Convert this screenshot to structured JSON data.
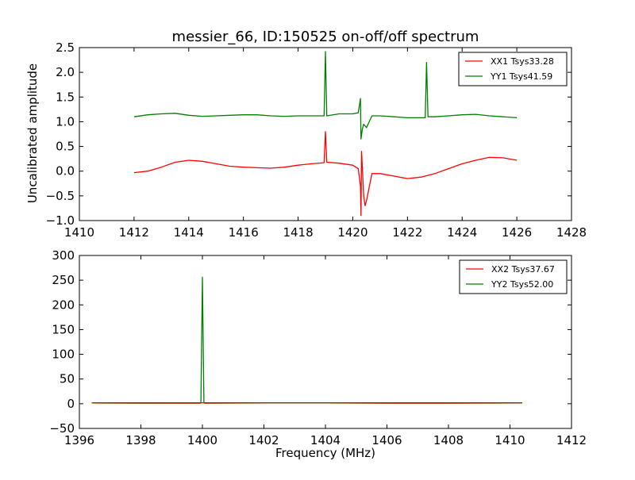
{
  "chart_data": [
    {
      "type": "line",
      "title": "messier_66, ID:150525 on-off/off spectrum",
      "xlabel": "",
      "ylabel": "Uncalibrated amplitude",
      "xlim": [
        1410,
        1428
      ],
      "ylim": [
        -1.0,
        2.5
      ],
      "xticks": [
        1410,
        1412,
        1414,
        1416,
        1418,
        1420,
        1422,
        1424,
        1426,
        1428
      ],
      "yticks": [
        -1.0,
        -0.5,
        0.0,
        0.5,
        1.0,
        1.5,
        2.0,
        2.5
      ],
      "xtick_labels": [
        "1410",
        "1412",
        "1414",
        "1416",
        "1418",
        "1420",
        "1422",
        "1424",
        "1426",
        "1428"
      ],
      "ytick_labels": [
        "−1.0",
        "−0.5",
        "0.0",
        "0.5",
        "1.0",
        "1.5",
        "2.0",
        "2.5"
      ],
      "legend": "top-right",
      "series": [
        {
          "name": "XX1 Tsys33.28",
          "color": "#ff0000",
          "x": [
            1412.0,
            1412.5,
            1413.0,
            1413.5,
            1414.0,
            1414.5,
            1415.0,
            1415.5,
            1416.0,
            1416.5,
            1417.0,
            1417.5,
            1418.0,
            1418.5,
            1418.95,
            1419.0,
            1419.05,
            1419.5,
            1420.0,
            1420.2,
            1420.28,
            1420.3,
            1420.32,
            1420.4,
            1420.45,
            1420.5,
            1420.7,
            1421.0,
            1421.5,
            1422.0,
            1422.5,
            1423.0,
            1423.5,
            1424.0,
            1424.5,
            1425.0,
            1425.5,
            1426.0
          ],
          "y": [
            -0.03,
            0.0,
            0.08,
            0.18,
            0.22,
            0.2,
            0.15,
            0.1,
            0.08,
            0.07,
            0.06,
            0.08,
            0.12,
            0.15,
            0.17,
            0.8,
            0.18,
            0.16,
            0.12,
            0.05,
            -0.3,
            -0.9,
            0.4,
            -0.5,
            -0.7,
            -0.6,
            -0.05,
            -0.05,
            -0.1,
            -0.15,
            -0.12,
            -0.05,
            0.05,
            0.15,
            0.22,
            0.28,
            0.27,
            0.22
          ]
        },
        {
          "name": "YY1 Tsys41.59",
          "color": "#007f00",
          "x": [
            1412.0,
            1412.5,
            1413.0,
            1413.5,
            1414.0,
            1414.5,
            1415.0,
            1415.5,
            1416.0,
            1416.5,
            1417.0,
            1417.5,
            1418.0,
            1418.5,
            1418.95,
            1419.0,
            1419.05,
            1419.5,
            1420.0,
            1420.2,
            1420.28,
            1420.3,
            1420.35,
            1420.4,
            1420.5,
            1420.7,
            1421.0,
            1421.5,
            1422.0,
            1422.65,
            1422.7,
            1422.75,
            1423.0,
            1423.5,
            1424.0,
            1424.5,
            1425.0,
            1425.5,
            1426.0
          ],
          "y": [
            1.1,
            1.14,
            1.16,
            1.17,
            1.13,
            1.11,
            1.12,
            1.13,
            1.14,
            1.14,
            1.12,
            1.11,
            1.12,
            1.12,
            1.12,
            2.42,
            1.12,
            1.16,
            1.16,
            1.18,
            1.47,
            0.65,
            0.85,
            0.95,
            0.88,
            1.12,
            1.12,
            1.1,
            1.08,
            1.08,
            2.2,
            1.1,
            1.1,
            1.12,
            1.14,
            1.15,
            1.12,
            1.1,
            1.08
          ]
        }
      ]
    },
    {
      "type": "line",
      "title": "",
      "xlabel": "Frequency (MHz)",
      "ylabel": "",
      "xlim": [
        1396,
        1412
      ],
      "ylim": [
        -50,
        300
      ],
      "xticks": [
        1396,
        1398,
        1400,
        1402,
        1404,
        1406,
        1408,
        1410,
        1412
      ],
      "yticks": [
        -50,
        0,
        50,
        100,
        150,
        200,
        250,
        300
      ],
      "xtick_labels": [
        "1396",
        "1398",
        "1400",
        "1402",
        "1404",
        "1406",
        "1408",
        "1410",
        "1412"
      ],
      "ytick_labels": [
        "−50",
        "0",
        "50",
        "100",
        "150",
        "200",
        "250",
        "300"
      ],
      "legend": "top-right",
      "series": [
        {
          "name": "XX2 Tsys37.67",
          "color": "#ff0000",
          "x": [
            1396.4,
            1398.0,
            1399.9,
            1400.0,
            1400.1,
            1402.0,
            1404.0,
            1406.0,
            1408.0,
            1410.4
          ],
          "y": [
            1.5,
            1.0,
            1.0,
            2.0,
            1.0,
            1.5,
            1.5,
            1.0,
            1.0,
            1.5
          ]
        },
        {
          "name": "YY2 Tsys52.00",
          "color": "#007f00",
          "x": [
            1396.4,
            1398.0,
            1399.95,
            1400.0,
            1400.05,
            1402.0,
            1404.0,
            1406.0,
            1408.0,
            1410.4
          ],
          "y": [
            2.0,
            1.8,
            2.0,
            256.0,
            2.0,
            2.0,
            2.0,
            2.0,
            2.0,
            2.0
          ]
        }
      ]
    }
  ]
}
